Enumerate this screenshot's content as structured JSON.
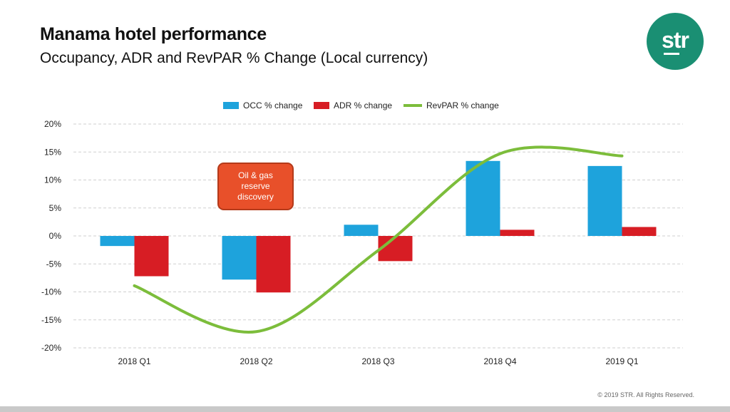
{
  "header": {
    "title": "Manama hotel performance",
    "subtitle": "Occupancy, ADR and RevPAR % Change (Local currency)"
  },
  "logo": {
    "text": "str",
    "color": "#1a8f73"
  },
  "footer": {
    "copyright": "© 2019 STR. All Rights Reserved."
  },
  "colors": {
    "occ": "#1ea3dc",
    "adr": "#d71d24",
    "revpar": "#7cbd3b",
    "annotation": "#e8502a"
  },
  "chart_data": {
    "type": "bar",
    "categories": [
      "2018 Q1",
      "2018 Q2",
      "2018 Q3",
      "2018 Q4",
      "2019 Q1"
    ],
    "series": [
      {
        "name": "OCC % change",
        "kind": "bar",
        "values": [
          -1.8,
          -7.8,
          2.0,
          13.4,
          12.5
        ]
      },
      {
        "name": "ADR % change",
        "kind": "bar",
        "values": [
          -7.2,
          -10.1,
          -4.5,
          1.1,
          1.6
        ]
      },
      {
        "name": "RevPAR % change",
        "kind": "line",
        "smooth": true,
        "values": [
          -8.9,
          -17.1,
          -2.6,
          14.7,
          14.3
        ]
      }
    ],
    "ylim": [
      -20,
      20
    ],
    "yticks": [
      20,
      15,
      10,
      5,
      0,
      -5,
      -10,
      -15,
      -20
    ],
    "ytick_labels": [
      "20%",
      "15%",
      "10%",
      "5%",
      "0%",
      "-5%",
      "-10%",
      "-15%",
      "-20%"
    ],
    "grid": true,
    "legend_position": "top-center",
    "annotations": [
      {
        "text": "Oil & gas reserve discovery",
        "category": "2018 Q2"
      }
    ]
  }
}
